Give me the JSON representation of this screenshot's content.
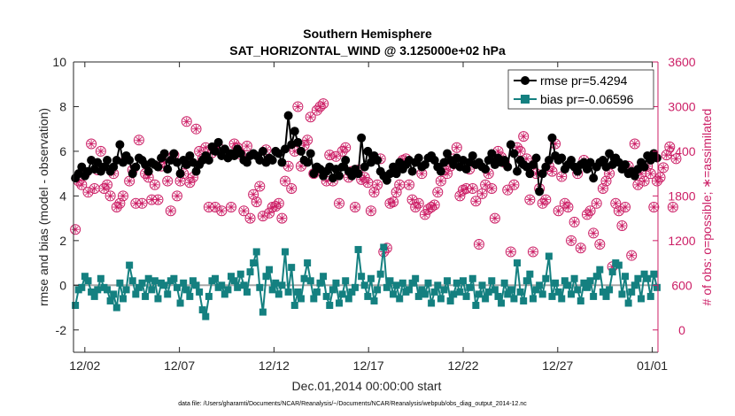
{
  "chart_data": {
    "type": "line",
    "title_line1": "Southern Hemisphere",
    "title_line2": "SAT_HORIZONTAL_WIND @ 3.125000e+02 hPa",
    "xlabel": "Dec.01,2014 00:00:00 start",
    "ylabel_left": "rmse and bias (model - observation)",
    "ylabel_right": "# of obs: o=possible; ∗=assimilated",
    "footer": "data file: /Users/gharamti/Documents/NCAR/Reanalysis/~/Documents/NCAR/Reanalysis/webpub/obs_diag_output_2014-12.nc",
    "xlim": [
      0.4,
      31.3
    ],
    "ylim_left": [
      -3,
      10
    ],
    "ylim_right": [
      -300,
      3600
    ],
    "x_ticks": [
      1,
      6,
      11,
      16,
      21,
      26,
      31
    ],
    "x_tick_labels": [
      "12/02",
      "12/07",
      "12/12",
      "12/17",
      "12/22",
      "12/27",
      "01/01"
    ],
    "y_ticks_left": [
      -2,
      0,
      2,
      4,
      6,
      8,
      10
    ],
    "y_ticks_right": [
      0,
      600,
      1200,
      1800,
      2400,
      3000,
      3600
    ],
    "legend": {
      "rmse_label": "rmse pr=5.4294",
      "bias_label": "bias pr=-0.06596",
      "location": "top-right"
    },
    "colors": {
      "rmse": "#000000",
      "bias": "#148080",
      "obs": "#cc1f66",
      "zero_line": "#a8a8a8"
    },
    "series_rmse": [
      4.8,
      5.0,
      5.3,
      4.9,
      5.1,
      5.6,
      5.2,
      5.5,
      5.1,
      5.3,
      5.6,
      5.1,
      5.3,
      5.6,
      6.3,
      5.5,
      5.8,
      5.6,
      5.0,
      5.3,
      5.7,
      5.6,
      5.4,
      5.1,
      5.5,
      5.4,
      5.3,
      5.7,
      5.9,
      5.2,
      5.6,
      5.9,
      5.5,
      5.0,
      5.6,
      5.4,
      5.8,
      5.5,
      5.1,
      5.4,
      5.6,
      5.8,
      5.6,
      6.2,
      6.0,
      6.4,
      5.8,
      6.1,
      5.7,
      5.9,
      5.8,
      6.1,
      5.9,
      5.6,
      5.5,
      5.8,
      5.9,
      5.8,
      5.6,
      6.0,
      5.5,
      5.7,
      5.6,
      6.0,
      5.9,
      5.5,
      6.1,
      7.6,
      6.3,
      6.9,
      6.4,
      6.0,
      5.6,
      5.5,
      5.9,
      5.0,
      5.3,
      5.2,
      4.9,
      5.1,
      5.3,
      4.8,
      5.2,
      4.9,
      5.3,
      5.6,
      5.1,
      4.9,
      5.2,
      5.0,
      6.6,
      5.3,
      6.0,
      5.5,
      5.8,
      5.6,
      5.1,
      4.9,
      4.7,
      5.0,
      5.3,
      5.0,
      5.5,
      5.2,
      5.4,
      5.6,
      5.1,
      5.5,
      5.7,
      5.3,
      5.4,
      5.7,
      5.8,
      5.6,
      5.3,
      5.1,
      5.5,
      5.9,
      5.6,
      5.4,
      5.7,
      5.3,
      5.6,
      5.2,
      5.5,
      5.8,
      5.4,
      5.5,
      5.3,
      5.2,
      5.6,
      5.9,
      5.4,
      5.7,
      5.5,
      5.6,
      5.3,
      6.3,
      5.9,
      5.1,
      5.6,
      5.4,
      5.3,
      5.0,
      5.4,
      5.7,
      4.2,
      5.0,
      5.3,
      5.6,
      6.6,
      5.8,
      5.6,
      5.7,
      5.2,
      5.4,
      5.6,
      5.3,
      5.1,
      5.4,
      5.5,
      5.2,
      5.5,
      4.8,
      5.3,
      5.5,
      5.6,
      5.3,
      5.9,
      5.4,
      5.7,
      5.5,
      5.2,
      5.4,
      5.0,
      5.1,
      4.9,
      5.2,
      5.5,
      5.3,
      5.8,
      5.6,
      5.9,
      5.7
    ],
    "series_bias": [
      -0.9,
      -0.2,
      -0.1,
      0.4,
      0.2,
      -0.3,
      -0.5,
      -0.2,
      0.3,
      -0.1,
      -0.2,
      -0.7,
      -0.4,
      -1.0,
      0.1,
      -0.6,
      -0.2,
      0.9,
      0.2,
      -0.4,
      -0.1,
      0.1,
      -0.5,
      0.3,
      -0.2,
      0.2,
      -0.6,
      0.1,
      0.0,
      -0.4,
      0.2,
      0.3,
      -0.1,
      -0.8,
      0.1,
      -0.2,
      -0.5,
      0.2,
      0.0,
      -0.3,
      -1.1,
      -1.4,
      -0.5,
      0.2,
      0.3,
      -0.1,
      0.0,
      -0.4,
      -0.2,
      0.4,
      0.2,
      -0.1,
      0.5,
      0.0,
      -0.3,
      0.6,
      1.0,
      1.5,
      -0.1,
      -1.2,
      0.4,
      0.7,
      -0.2,
      0.1,
      -0.4,
      0.0,
      1.5,
      -0.3,
      0.8,
      -0.9,
      -0.3,
      -0.6,
      0.3,
      1.0,
      0.2,
      -0.6,
      -0.3,
      0.1,
      0.4,
      -0.5,
      -0.9,
      -0.2,
      0.1,
      -0.8,
      -0.4,
      0.2,
      -0.6,
      -0.3,
      -0.1,
      1.6,
      0.4,
      0.0,
      -0.5,
      0.3,
      -0.7,
      -0.2,
      0.5,
      1.7,
      -0.1,
      0.2,
      -0.4,
      0.0,
      -0.6,
      0.1,
      -0.3,
      -0.2,
      0.1,
      0.3,
      -0.5,
      -0.2,
      -0.4,
      0.1,
      -0.8,
      -0.3,
      0.0,
      -0.6,
      -0.2,
      0.2,
      -0.7,
      -0.4,
      0.1,
      -0.3,
      0.2,
      -0.5,
      -0.1,
      0.3,
      -0.9,
      -0.4,
      0.0,
      -0.6,
      -0.3,
      0.2,
      -0.2,
      -0.5,
      -0.8,
      0.1,
      -0.4,
      -0.2,
      -0.6,
      1.0,
      -0.3,
      -0.7,
      0.2,
      0.5,
      -0.6,
      -0.2,
      0.0,
      -0.4,
      0.3,
      1.3,
      -0.5,
      0.1,
      -0.3,
      -0.6,
      0.2,
      0.0,
      -0.4,
      0.3,
      -0.2,
      -0.7,
      0.1,
      -0.1,
      0.2,
      -0.5,
      0.4,
      0.7,
      -0.3,
      -0.5,
      -0.2,
      0.6,
      1.0,
      0.9,
      -0.4,
      0.4,
      -0.8,
      -0.3,
      0.0,
      0.3,
      -0.6,
      0.5,
      0.3,
      -0.5,
      0.5,
      -0.1
    ],
    "series_obs_possible": [
      1350,
      2000,
      1950,
      2100,
      1850,
      2500,
      1900,
      2150,
      2400,
      1900,
      1950,
      1800,
      2100,
      1650,
      1700,
      1800,
      2300,
      2000,
      2150,
      1700,
      2550,
      1700,
      2100,
      2050,
      1750,
      1950,
      1750,
      2200,
      2250,
      2000,
      1600,
      2350,
      1800,
      2000,
      2100,
      2800,
      1980,
      2050,
      2700,
      2400,
      2300,
      2450,
      1650,
      2380,
      1650,
      2450,
      1600,
      2400,
      2350,
      1650,
      2500,
      2450,
      2360,
      1600,
      2470,
      1500,
      1820,
      1720,
      1930,
      1530,
      2420,
      1570,
      1650,
      1660,
      1700,
      1500,
      2000,
      2200,
      1900,
      2400,
      3000,
      2200,
      2480,
      2550,
      2860,
      2100,
      2950,
      3000,
      3040,
      2000,
      2350,
      2000,
      2330,
      1700,
      2400,
      2450,
      2050,
      2130,
      1650,
      2150,
      2020,
      2050,
      1980,
      1600,
      1850,
      1950,
      2300,
      1050,
      1100,
      1700,
      1720,
      1850,
      1950,
      2280,
      2300,
      1950,
      1750,
      1650,
      1700,
      2100,
      1550,
      1620,
      1650,
      1680,
      1850,
      2000,
      2150,
      2100,
      2200,
      2300,
      2450,
      1800,
      1880,
      1900,
      2160,
      1900,
      1730,
      1150,
      1830,
      1950,
      2100,
      1900,
      1500,
      2400,
      2320,
      2250,
      1880,
      1050,
      1950,
      2450,
      2400,
      2600,
      2300,
      1750,
      1050,
      2100,
      1900,
      1700,
      1750,
      2200,
      2130,
      2500,
      1600,
      2060,
      1700,
      1650,
      1200,
      1450,
      2100,
      1100,
      2280,
      1550,
      1600,
      1300,
      1700,
      1150,
      1900,
      2000,
      2100,
      850,
      1700,
      1600,
      1400,
      1650,
      2200,
      1000,
      2500,
      1950,
      2100,
      2000,
      2200,
      2100,
      1650,
      2000,
      2050,
      2180,
      2350,
      2460,
      1650,
      2300
    ],
    "series_obs_assimilated": [
      1350,
      2000,
      1950,
      2100,
      1850,
      2500,
      1900,
      2150,
      2400,
      1900,
      1950,
      1800,
      2100,
      1650,
      1700,
      1800,
      2300,
      2000,
      2150,
      1700,
      2550,
      1700,
      2100,
      2050,
      1750,
      1950,
      1750,
      2200,
      2250,
      2000,
      1600,
      2350,
      1800,
      2000,
      2100,
      2800,
      1980,
      2050,
      2700,
      2400,
      2300,
      2450,
      1650,
      2380,
      1650,
      2450,
      1600,
      2400,
      2350,
      1650,
      2500,
      2450,
      2360,
      1600,
      2470,
      1500,
      1820,
      1720,
      1930,
      1530,
      2420,
      1570,
      1650,
      1660,
      1700,
      1500,
      2000,
      2200,
      1900,
      2400,
      3000,
      2200,
      2480,
      2550,
      2860,
      2100,
      2950,
      3000,
      3040,
      2000,
      2350,
      2000,
      2330,
      1700,
      2400,
      2450,
      2050,
      2130,
      1650,
      2150,
      2020,
      2050,
      1980,
      1600,
      1850,
      1950,
      2300,
      1050,
      1100,
      1700,
      1720,
      1850,
      1950,
      2280,
      2300,
      1950,
      1750,
      1650,
      1700,
      2100,
      1550,
      1620,
      1650,
      1680,
      1850,
      2000,
      2150,
      2100,
      2200,
      2300,
      2450,
      1800,
      1880,
      1900,
      2160,
      1900,
      1730,
      1150,
      1830,
      1950,
      2100,
      1900,
      1500,
      2400,
      2320,
      2250,
      1880,
      1050,
      1950,
      2450,
      2400,
      2600,
      2300,
      1750,
      1050,
      2100,
      1900,
      1700,
      1750,
      2200,
      2130,
      2500,
      1600,
      2060,
      1700,
      1650,
      1200,
      1450,
      2100,
      1100,
      2280,
      1550,
      1600,
      1300,
      1700,
      1150,
      1900,
      2000,
      2100,
      850,
      1700,
      1600,
      1400,
      1650,
      2200,
      1000,
      2500,
      1950,
      2100,
      2000,
      2200,
      2100,
      1650,
      2000,
      2050,
      2180,
      2350,
      2460,
      1650,
      2300
    ]
  }
}
